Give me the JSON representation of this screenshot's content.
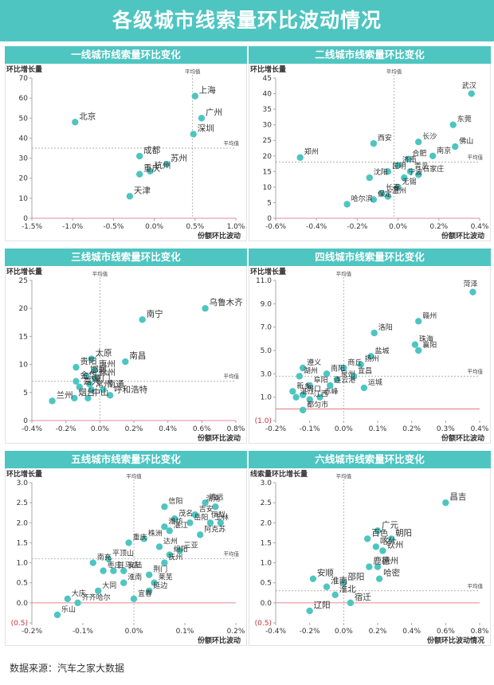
{
  "page": {
    "title": "各级城市线索量环比波动情况",
    "source": "数据来源：汽车之家大数据"
  },
  "colors": {
    "banner": "#4ec5c1",
    "point": "#4ec5c1",
    "axis": "#aaaaaa",
    "zero_x_line": "#e06070",
    "avg_line": "#999999"
  },
  "chart_data": [
    {
      "type": "scatter",
      "title": "一线城市线索量环比变化",
      "xlabel": "份额环比波动",
      "ylabel": "环比增长量",
      "xlim": [
        -1.5,
        1.0
      ],
      "ylim": [
        0,
        70
      ],
      "xticks": [
        -1.5,
        -1.0,
        -0.5,
        0.0,
        0.5,
        1.0
      ],
      "xtick_labels": [
        "-1.5%",
        "-1.0%",
        "-0.5%",
        "0.0%",
        "0.5%",
        "1.0%"
      ],
      "yticks": [
        0,
        10,
        20,
        30,
        40,
        50,
        60,
        70
      ],
      "ytick_labels": [
        "0",
        "10",
        "20",
        "30",
        "40",
        "50",
        "60",
        "70"
      ],
      "avg_x": 0.47,
      "avg_y": 35,
      "avg_label": "平均值",
      "points": [
        {
          "x": -0.97,
          "y": 48,
          "label": "北京"
        },
        {
          "x": 0.5,
          "y": 61,
          "label": "上海"
        },
        {
          "x": 0.58,
          "y": 50,
          "label": "广州"
        },
        {
          "x": 0.48,
          "y": 42,
          "label": "深圳"
        },
        {
          "x": -0.18,
          "y": 31,
          "label": "成都"
        },
        {
          "x": 0.15,
          "y": 27,
          "label": "苏州"
        },
        {
          "x": -0.05,
          "y": 23.5,
          "label": "杭州"
        },
        {
          "x": -0.18,
          "y": 22,
          "label": "重庆"
        },
        {
          "x": -0.3,
          "y": 11,
          "label": "天津"
        }
      ]
    },
    {
      "type": "scatter",
      "title": "二线城市线索量环比变化",
      "xlabel": "份额环比波动",
      "ylabel": "环比增长量",
      "xlim": [
        -0.6,
        0.4
      ],
      "ylim": [
        0,
        45
      ],
      "xticks": [
        -0.6,
        -0.4,
        -0.2,
        0.0,
        0.2,
        0.4
      ],
      "xtick_labels": [
        "-0.6%",
        "-0.4%",
        "-0.2%",
        "0.0%",
        "0.2%",
        "0.4%"
      ],
      "yticks": [
        0,
        5,
        10,
        15,
        20,
        25,
        30,
        35,
        40,
        45
      ],
      "ytick_labels": [
        "0",
        "5",
        "10",
        "15",
        "20",
        "25",
        "30",
        "35",
        "40",
        "45"
      ],
      "avg_x": -0.02,
      "avg_y": 18,
      "avg_label": "平均值",
      "points": [
        {
          "x": 0.36,
          "y": 40,
          "label": "武汉"
        },
        {
          "x": 0.27,
          "y": 30,
          "label": "东莞"
        },
        {
          "x": 0.28,
          "y": 23,
          "label": "佛山"
        },
        {
          "x": -0.48,
          "y": 19.5,
          "label": "郑州"
        },
        {
          "x": -0.12,
          "y": 24,
          "label": "西安"
        },
        {
          "x": 0.1,
          "y": 24.5,
          "label": "长沙"
        },
        {
          "x": 0.17,
          "y": 20,
          "label": "南京"
        },
        {
          "x": 0.05,
          "y": 19,
          "label": "合肥"
        },
        {
          "x": 0.0,
          "y": 17,
          "label": "济南"
        },
        {
          "x": -0.05,
          "y": 15,
          "label": "昆明"
        },
        {
          "x": 0.06,
          "y": 15,
          "label": "青岛"
        },
        {
          "x": 0.1,
          "y": 14,
          "label": "石家庄"
        },
        {
          "x": 0.03,
          "y": 13,
          "label": "宁波"
        },
        {
          "x": -0.14,
          "y": 13,
          "label": "沈阳"
        },
        {
          "x": 0.0,
          "y": 10,
          "label": "无锡"
        },
        {
          "x": -0.08,
          "y": 8,
          "label": "长春"
        },
        {
          "x": -0.05,
          "y": 7,
          "label": "温州"
        },
        {
          "x": -0.12,
          "y": 6,
          "label": "保定"
        },
        {
          "x": -0.25,
          "y": 4.5,
          "label": "哈尔滨"
        }
      ]
    },
    {
      "type": "scatter",
      "title": "三线城市线索量环比变化",
      "xlabel": "份额环比波动",
      "ylabel": "环比增长量",
      "xlim": [
        -0.4,
        0.8
      ],
      "ylim": [
        0,
        25
      ],
      "xticks": [
        -0.4,
        -0.2,
        0.0,
        0.2,
        0.4,
        0.6,
        0.8
      ],
      "xtick_labels": [
        "-0.4%",
        "-0.2%",
        "0.0%",
        "0.2%",
        "0.4%",
        "0.6%",
        "0.8%"
      ],
      "yticks": [
        0,
        5,
        10,
        15,
        20,
        25
      ],
      "ytick_labels": [
        "0",
        "5",
        "10",
        "15",
        "20",
        "25"
      ],
      "avg_x": 0.0,
      "avg_y": 7,
      "avg_label": "平均值",
      "points": [
        {
          "x": 0.62,
          "y": 20,
          "label": "乌鲁木齐"
        },
        {
          "x": 0.25,
          "y": 18,
          "label": "南宁"
        },
        {
          "x": -0.05,
          "y": 11,
          "label": "太原"
        },
        {
          "x": 0.15,
          "y": 10.5,
          "label": "南昌"
        },
        {
          "x": -0.14,
          "y": 9.5,
          "label": "贵阳"
        },
        {
          "x": -0.03,
          "y": 9,
          "label": "惠州"
        },
        {
          "x": -0.08,
          "y": 8,
          "label": "邯郸"
        },
        {
          "x": -0.03,
          "y": 7.5,
          "label": "徐州"
        },
        {
          "x": -0.14,
          "y": 7,
          "label": "金华"
        },
        {
          "x": -0.06,
          "y": 6.5,
          "label": "厦门"
        },
        {
          "x": -0.12,
          "y": 6,
          "label": "嘉兴"
        },
        {
          "x": -0.05,
          "y": 5.5,
          "label": "常州"
        },
        {
          "x": 0.02,
          "y": 5.5,
          "label": "南通"
        },
        {
          "x": -0.15,
          "y": 4,
          "label": "烟台"
        },
        {
          "x": -0.07,
          "y": 4,
          "label": "中山"
        },
        {
          "x": 0.06,
          "y": 4.5,
          "label": "呼和浩特"
        },
        {
          "x": -0.28,
          "y": 3.5,
          "label": "兰州"
        }
      ]
    },
    {
      "type": "scatter",
      "title": "四线城市线索量环比变化",
      "xlabel": "份额环比波动",
      "ylabel": "环比增长量",
      "xlim": [
        -0.2,
        0.4
      ],
      "ylim": [
        -1.0,
        11.0
      ],
      "xticks": [
        -0.2,
        -0.1,
        0.0,
        0.1,
        0.2,
        0.3,
        0.4
      ],
      "xtick_labels": [
        "-0.2%",
        "-0.1%",
        "0.0%",
        "0.1%",
        "0.2%",
        "0.3%",
        "0.4%"
      ],
      "yticks": [
        -1.0,
        1.0,
        3.0,
        5.0,
        7.0,
        9.0,
        11.0
      ],
      "ytick_labels": [
        "(1.0)",
        "1.0",
        "3.0",
        "5.0",
        "7.0",
        "9.0",
        "11.0"
      ],
      "avg_x": 0.0,
      "avg_y": 2.8,
      "avg_label": "平均值",
      "points": [
        {
          "x": 0.38,
          "y": 10.0,
          "label": "菏泽"
        },
        {
          "x": 0.22,
          "y": 7.5,
          "label": "赣州"
        },
        {
          "x": 0.09,
          "y": 6.5,
          "label": "洛阳"
        },
        {
          "x": 0.21,
          "y": 5.5,
          "label": "珠海"
        },
        {
          "x": 0.22,
          "y": 5.0,
          "label": "襄阳"
        },
        {
          "x": 0.08,
          "y": 4.5,
          "label": "盐城"
        },
        {
          "x": 0.05,
          "y": 3.8,
          "label": "扬州"
        },
        {
          "x": 0.0,
          "y": 3.5,
          "label": "商丘"
        },
        {
          "x": -0.12,
          "y": 3.5,
          "label": "遵义"
        },
        {
          "x": -0.05,
          "y": 3.0,
          "label": "南阳"
        },
        {
          "x": -0.13,
          "y": 2.8,
          "label": "湖州"
        },
        {
          "x": 0.03,
          "y": 2.8,
          "label": "宜昌"
        },
        {
          "x": -0.02,
          "y": 2.5,
          "label": "泉州"
        },
        {
          "x": -0.1,
          "y": 2.0,
          "label": "阜阳"
        },
        {
          "x": -0.04,
          "y": 2.0,
          "label": "连云港"
        },
        {
          "x": 0.06,
          "y": 1.8,
          "label": "运城"
        },
        {
          "x": -0.15,
          "y": 1.5,
          "label": "新乡"
        },
        {
          "x": -0.12,
          "y": 1.2,
          "label": "周口"
        },
        {
          "x": -0.14,
          "y": 1.0,
          "label": "湛江"
        },
        {
          "x": -0.1,
          "y": 0.8,
          "label": "江西"
        },
        {
          "x": -0.07,
          "y": 1.0,
          "label": "赤峰"
        },
        {
          "x": -0.12,
          "y": -0.1,
          "label": "都匀市"
        }
      ]
    },
    {
      "type": "scatter",
      "title": "五线城市线索量环比变化",
      "xlabel": "份额环比波动",
      "ylabel": "环比增长量",
      "xlim": [
        -0.2,
        0.2
      ],
      "ylim": [
        -0.5,
        3.0
      ],
      "xticks": [
        -0.2,
        -0.1,
        0.0,
        0.1,
        0.2
      ],
      "xtick_labels": [
        "-0.2%",
        "-0.1%",
        "0.0%",
        "0.1%",
        "0.2%"
      ],
      "yticks": [
        -0.5,
        0.0,
        0.5,
        1.0,
        1.5,
        2.0,
        2.5,
        3.0
      ],
      "ytick_labels": [
        "(0.5)",
        "0.0",
        "0.5",
        "1.0",
        "1.5",
        "2.0",
        "2.5",
        "3.0"
      ],
      "avg_x": 0.0,
      "avg_y": 1.1,
      "avg_label": "平均值",
      "points": [
        {
          "x": 0.14,
          "y": 2.5,
          "label": "清远"
        },
        {
          "x": 0.06,
          "y": 2.4,
          "label": "信阳"
        },
        {
          "x": 0.16,
          "y": 2.4,
          "label": "渭南"
        },
        {
          "x": 0.12,
          "y": 2.2,
          "label": "吉安"
        },
        {
          "x": 0.08,
          "y": 2.1,
          "label": "茂名"
        },
        {
          "x": 0.11,
          "y": 2.0,
          "label": "岳阳"
        },
        {
          "x": 0.15,
          "y": 2.0,
          "label": "玉林"
        },
        {
          "x": 0.17,
          "y": 2.0,
          "label": "伊犁"
        },
        {
          "x": 0.06,
          "y": 1.9,
          "label": "潍坊"
        },
        {
          "x": 0.07,
          "y": 1.8,
          "label": "湛江"
        },
        {
          "x": 0.13,
          "y": 1.7,
          "label": "阿克苏"
        },
        {
          "x": 0.02,
          "y": 1.6,
          "label": "株洲"
        },
        {
          "x": -0.01,
          "y": 1.5,
          "label": "重庆"
        },
        {
          "x": 0.05,
          "y": 1.4,
          "label": "达州"
        },
        {
          "x": 0.09,
          "y": 1.3,
          "label": "三亚"
        },
        {
          "x": 0.07,
          "y": 1.2,
          "label": "绵阳"
        },
        {
          "x": -0.05,
          "y": 1.1,
          "label": "平顶山"
        },
        {
          "x": 0.06,
          "y": 1.0,
          "label": "抚州"
        },
        {
          "x": -0.08,
          "y": 1.0,
          "label": "南充"
        },
        {
          "x": -0.02,
          "y": 0.8,
          "label": "安陆"
        },
        {
          "x": 0.03,
          "y": 0.7,
          "label": "荆门"
        },
        {
          "x": -0.06,
          "y": 0.8,
          "label": "枣庄"
        },
        {
          "x": -0.04,
          "y": 0.8,
          "label": "驻马店"
        },
        {
          "x": 0.04,
          "y": 0.5,
          "label": "莱芜"
        },
        {
          "x": -0.02,
          "y": 0.5,
          "label": "淮南"
        },
        {
          "x": 0.03,
          "y": 0.3,
          "label": "延边"
        },
        {
          "x": -0.07,
          "y": 0.3,
          "label": "大同"
        },
        {
          "x": 0.0,
          "y": 0.1,
          "label": "宜春"
        },
        {
          "x": -0.13,
          "y": 0.1,
          "label": "大庆"
        },
        {
          "x": -0.11,
          "y": 0.0,
          "label": "齐齐哈尔"
        },
        {
          "x": -0.15,
          "y": -0.3,
          "label": "乐山"
        }
      ]
    },
    {
      "type": "scatter",
      "title": "六线城市线索量环比变化",
      "xlabel": "份额环比波动情况",
      "ylabel": "线索量环比增长量",
      "xlim": [
        -0.4,
        0.8
      ],
      "ylim": [
        -0.5,
        3.0
      ],
      "xticks": [
        -0.4,
        -0.2,
        0.0,
        0.2,
        0.4,
        0.6,
        0.8
      ],
      "xtick_labels": [
        "-0.4%",
        "-0.2%",
        "0.0%",
        "0.2%",
        "0.4%",
        "0.6%",
        "0.8%"
      ],
      "yticks": [
        -0.5,
        0.0,
        0.5,
        1.0,
        1.5,
        2.0,
        2.5,
        3.0
      ],
      "ytick_labels": [
        "(0.5)",
        "0.0",
        "0.5",
        "1.0",
        "1.5",
        "2.0",
        "2.5",
        "3.0"
      ],
      "avg_x": 0.0,
      "avg_y": 0.3,
      "avg_label": "平均值",
      "points": [
        {
          "x": 0.6,
          "y": 2.5,
          "label": "昌吉"
        },
        {
          "x": 0.2,
          "y": 1.8,
          "label": "广元"
        },
        {
          "x": 0.14,
          "y": 1.6,
          "label": "百色"
        },
        {
          "x": 0.28,
          "y": 1.6,
          "label": "朝阳"
        },
        {
          "x": 0.19,
          "y": 1.4,
          "label": "喀什"
        },
        {
          "x": 0.23,
          "y": 1.3,
          "label": "钦州"
        },
        {
          "x": 0.15,
          "y": 0.9,
          "label": "鹿邑"
        },
        {
          "x": 0.2,
          "y": 0.9,
          "label": "德州"
        },
        {
          "x": 0.21,
          "y": 0.6,
          "label": "哈密"
        },
        {
          "x": -0.18,
          "y": 0.6,
          "label": "安顺"
        },
        {
          "x": -0.1,
          "y": 0.4,
          "label": "淮南"
        },
        {
          "x": 0.0,
          "y": 0.5,
          "label": "邵阳"
        },
        {
          "x": 0.04,
          "y": 0.0,
          "label": "宿迁"
        },
        {
          "x": -0.05,
          "y": 0.2,
          "label": "淮北"
        },
        {
          "x": -0.2,
          "y": -0.2,
          "label": "辽阳"
        }
      ]
    }
  ]
}
